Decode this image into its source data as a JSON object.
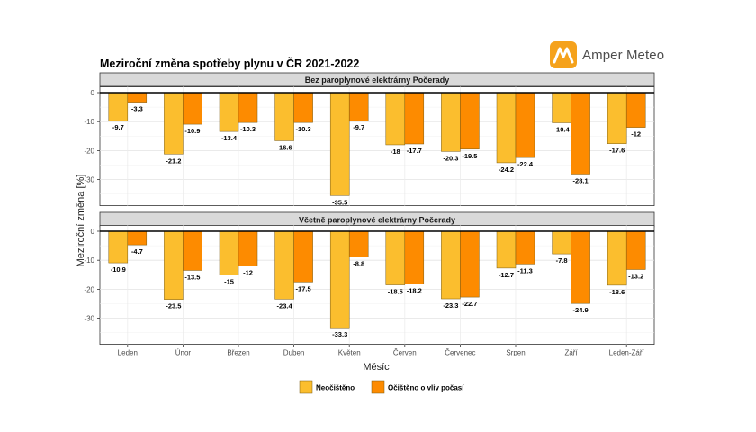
{
  "brand": {
    "name": "Amper Meteo",
    "icon": "amper-meteo-logo-icon",
    "color": "#f5a21c"
  },
  "chart_data": {
    "type": "bar",
    "title": "Meziroční změna spotřeby plynu v ČR 2021-2022",
    "xlabel": "Měsíc",
    "ylabel": "Meziroční změna [%]",
    "ylim": [
      -39,
      2
    ],
    "yticks": [
      0,
      -10,
      -20,
      -30
    ],
    "grid": true,
    "legend_position": "bottom",
    "categories": [
      "Leden",
      "Únor",
      "Březen",
      "Duben",
      "Květen",
      "Červen",
      "Červenec",
      "Srpen",
      "Září",
      "Leden-Září"
    ],
    "legend": [
      {
        "name": "Neočištěno",
        "color": "#fbbe2e"
      },
      {
        "name": "Očištěno o vliv počasí",
        "color": "#fd8b00"
      }
    ],
    "panels": [
      {
        "title": "Bez paroplynové elektrárny Počerady",
        "series": [
          {
            "name": "Neočištěno",
            "color": "#fbbe2e",
            "values": [
              -9.7,
              -21.2,
              -13.4,
              -16.6,
              -35.5,
              -18,
              -20.3,
              -24.2,
              -10.4,
              -17.6
            ],
            "labels": [
              "-9.7",
              "-21.2",
              "-13.4",
              "-16.6",
              "-35.5",
              "-18",
              "-20.3",
              "-24.2",
              "-10.4",
              "-17.6"
            ]
          },
          {
            "name": "Očištěno o vliv počasí",
            "color": "#fd8b00",
            "values": [
              -3.3,
              -10.9,
              -10.3,
              -10.3,
              -9.7,
              -17.7,
              -19.5,
              -22.4,
              -28.1,
              -12
            ],
            "labels": [
              "-3.3",
              "-10.9",
              "-10.3",
              "-10.3",
              "-9.7",
              "-17.7",
              "-19.5",
              "-22.4",
              "-28.1",
              "-12"
            ]
          }
        ]
      },
      {
        "title": "Včetně paroplynové elektrárny Počerady",
        "series": [
          {
            "name": "Neočištěno",
            "color": "#fbbe2e",
            "values": [
              -10.9,
              -23.5,
              -15,
              -23.4,
              -33.3,
              -18.5,
              -23.3,
              -12.7,
              -7.8,
              -18.6
            ],
            "labels": [
              "-10.9",
              "-23.5",
              "-15",
              "-23.4",
              "-33.3",
              "-18.5",
              "-23.3",
              "-12.7",
              "-7.8",
              "-18.6"
            ]
          },
          {
            "name": "Očištěno o vliv počasí",
            "color": "#fd8b00",
            "values": [
              -4.7,
              -13.5,
              -12,
              -17.5,
              -8.8,
              -18.2,
              -22.7,
              -11.3,
              -24.9,
              -13.2
            ],
            "labels": [
              "-4.7",
              "-13.5",
              "-12",
              "-17.5",
              "-8.8",
              "-18.2",
              "-22.7",
              "-11.3",
              "-24.9",
              "-13.2"
            ]
          }
        ]
      }
    ]
  }
}
